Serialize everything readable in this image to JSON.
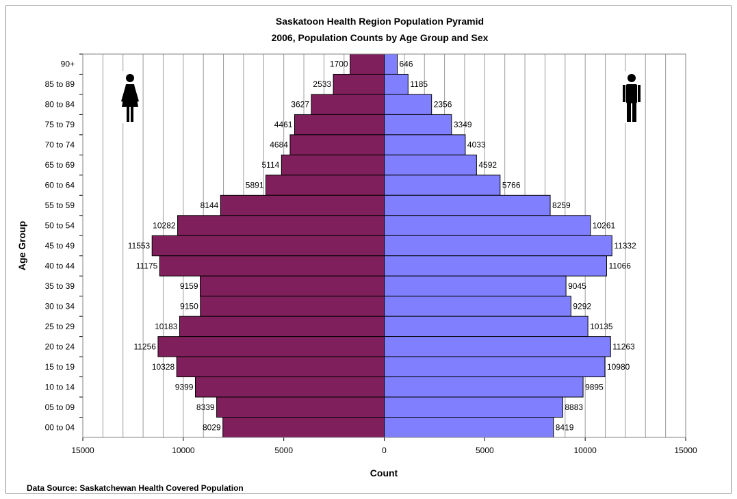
{
  "chart_data": {
    "type": "bar",
    "title": "Saskatoon Health Region Population Pyramid",
    "subtitle": "2006, Population Counts by Age Group and Sex",
    "xlabel": "Count",
    "ylabel": "Age Group",
    "xlim": [
      -15000,
      15000
    ],
    "x_ticks": [
      "15000",
      "10000",
      "5000",
      "0",
      "5000",
      "10000",
      "15000"
    ],
    "grid": true,
    "categories": [
      "90+",
      "85 to 89",
      "80 to 84",
      "75 to 79",
      "70 to 74",
      "65 to 69",
      "60 to 64",
      "55 to 59",
      "50 to 54",
      "45 to 49",
      "40 to 44",
      "35 to 39",
      "30 to 34",
      "25 to 29",
      "20 to 24",
      "15 to 19",
      "10 to 14",
      "05 to 09",
      "00 to 04"
    ],
    "series": [
      {
        "color": "#7f1f5b",
        "values": [
          1700,
          2533,
          3627,
          4461,
          4684,
          5114,
          5891,
          8144,
          10282,
          11553,
          11175,
          9159,
          9150,
          10183,
          11256,
          10328,
          9399,
          8339,
          8029
        ]
      },
      {
        "color": "#8080ff",
        "values": [
          646,
          1185,
          2356,
          3349,
          4033,
          4592,
          5766,
          8259,
          10261,
          11332,
          11066,
          9045,
          9292,
          10135,
          11263,
          10980,
          9895,
          8883,
          8419
        ]
      }
    ],
    "icons": [
      "female-icon",
      "male-icon"
    ],
    "source_note": "Data Source: Saskatchewan Health Covered Population"
  }
}
